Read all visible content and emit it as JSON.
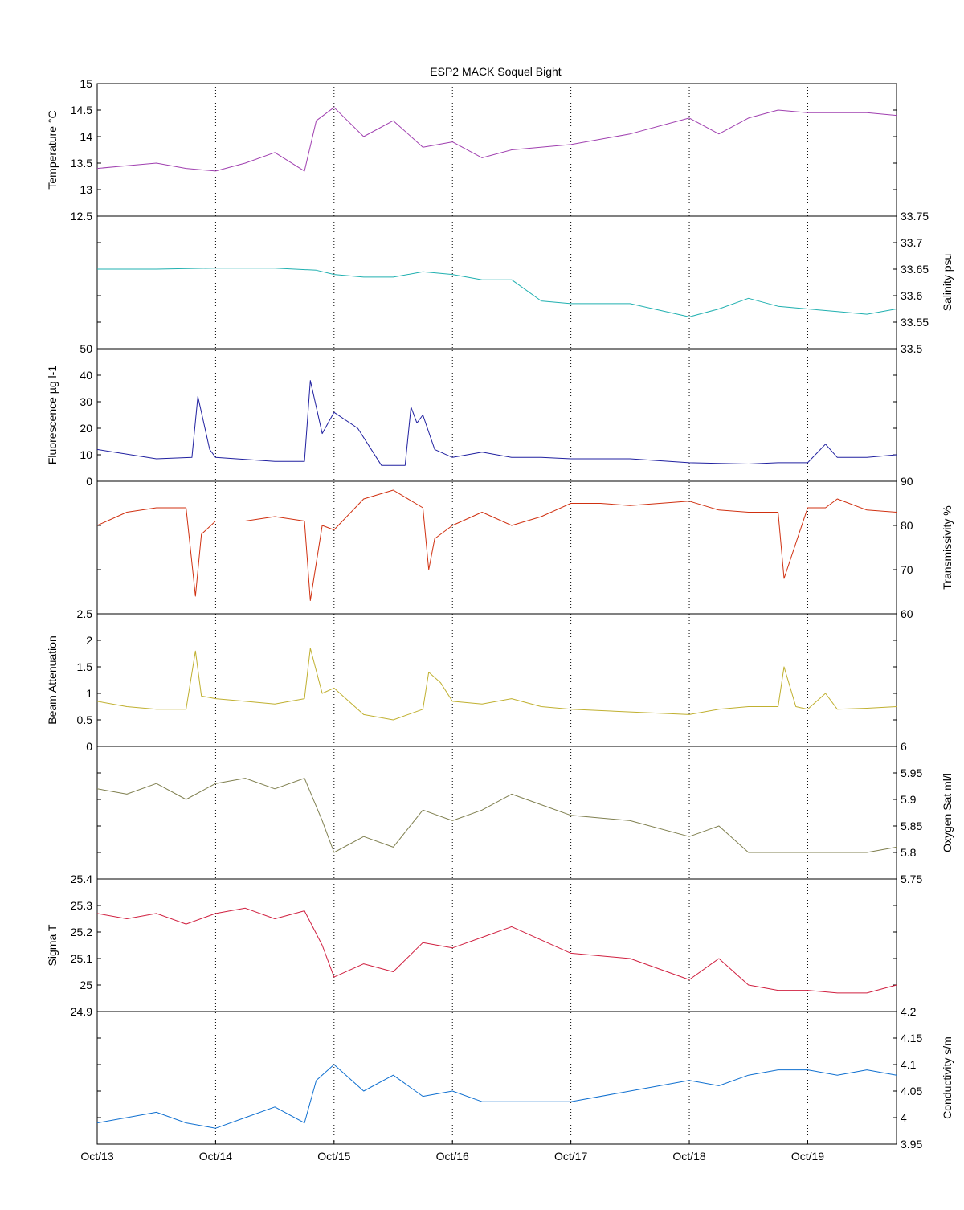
{
  "chart_data": {
    "type": "line",
    "title": "ESP2 MACK  Soquel Bight",
    "x_tick_labels": [
      "Oct/13",
      "Oct/14",
      "Oct/15",
      "Oct/16",
      "Oct/17",
      "Oct/18",
      "Oct/19"
    ],
    "xlim": [
      0,
      6.75
    ],
    "grid": "vertical dotted lines at each day",
    "panels": [
      {
        "name": "Temperature",
        "ylabel": "Temperature °C",
        "axis_side": "left",
        "ylim": [
          12.5,
          15
        ],
        "tick_labels": [
          "12.5",
          "13",
          "13.5",
          "14",
          "14.5",
          "15"
        ],
        "color": "#a040b0",
        "x": [
          0,
          0.25,
          0.5,
          0.75,
          1.0,
          1.25,
          1.5,
          1.75,
          1.85,
          2.0,
          2.25,
          2.5,
          2.75,
          3.0,
          3.25,
          3.5,
          4.0,
          4.5,
          5.0,
          5.25,
          5.5,
          5.75,
          6.0,
          6.25,
          6.5,
          6.75
        ],
        "y": [
          13.4,
          13.45,
          13.5,
          13.4,
          13.35,
          13.5,
          13.7,
          13.35,
          14.3,
          14.55,
          14.0,
          14.3,
          13.8,
          13.9,
          13.6,
          13.75,
          13.85,
          14.05,
          14.35,
          14.05,
          14.35,
          14.5,
          14.45,
          14.45,
          14.45,
          14.4
        ]
      },
      {
        "name": "Salinity",
        "ylabel": "Salinity psu",
        "axis_side": "right",
        "ylim": [
          33.5,
          33.75
        ],
        "tick_labels": [
          "33.5",
          "33.55",
          "33.6",
          "33.65",
          "33.7",
          "33.75"
        ],
        "color": "#20b0b0",
        "x": [
          0,
          0.5,
          1.0,
          1.5,
          1.85,
          2.0,
          2.25,
          2.5,
          2.75,
          3.0,
          3.25,
          3.5,
          3.75,
          4.0,
          4.5,
          5.0,
          5.25,
          5.5,
          5.75,
          6.0,
          6.25,
          6.5,
          6.75
        ],
        "y": [
          33.65,
          33.65,
          33.652,
          33.652,
          33.648,
          33.64,
          33.635,
          33.635,
          33.645,
          33.64,
          33.63,
          33.63,
          33.59,
          33.585,
          33.585,
          33.56,
          33.575,
          33.595,
          33.58,
          33.575,
          33.57,
          33.565,
          33.575
        ]
      },
      {
        "name": "Fluorescence",
        "ylabel": "Fluorescence µg l-1",
        "axis_side": "left",
        "ylim": [
          0,
          50
        ],
        "tick_labels": [
          "0",
          "10",
          "20",
          "30",
          "40",
          "50"
        ],
        "color": "#2020a0",
        "x": [
          0,
          0.5,
          0.8,
          0.85,
          0.95,
          1.0,
          1.5,
          1.75,
          1.8,
          1.9,
          2.0,
          2.2,
          2.4,
          2.6,
          2.65,
          2.7,
          2.75,
          2.85,
          3.0,
          3.25,
          3.5,
          3.75,
          4.0,
          4.5,
          5.0,
          5.5,
          5.75,
          5.9,
          6.0,
          6.15,
          6.25,
          6.5,
          6.75
        ],
        "y": [
          12,
          8.5,
          9,
          32,
          12,
          9,
          7.5,
          7.5,
          38,
          18,
          26,
          20,
          6,
          6,
          28,
          22,
          25,
          12,
          9,
          11,
          9,
          9,
          8.5,
          8.5,
          7,
          6.5,
          7,
          7,
          7,
          14,
          9,
          9,
          10
        ]
      },
      {
        "name": "Transmissivity",
        "ylabel": "Transmissivity %",
        "axis_side": "right",
        "ylim": [
          60,
          90
        ],
        "tick_labels": [
          "60",
          "70",
          "80",
          "90"
        ],
        "color": "#d03010",
        "x": [
          0,
          0.25,
          0.5,
          0.75,
          0.83,
          0.88,
          1.0,
          1.25,
          1.5,
          1.75,
          1.8,
          1.9,
          2.0,
          2.25,
          2.5,
          2.75,
          2.8,
          2.85,
          3.0,
          3.25,
          3.5,
          3.75,
          4.0,
          4.25,
          4.5,
          5.0,
          5.25,
          5.5,
          5.75,
          5.8,
          6.0,
          6.15,
          6.25,
          6.5,
          6.75
        ],
        "y": [
          80,
          83,
          84,
          84,
          64,
          78,
          81,
          81,
          82,
          81,
          63,
          80,
          79,
          86,
          88,
          84,
          70,
          77,
          80,
          83,
          80,
          82,
          85,
          85,
          84.5,
          85.5,
          83.5,
          83,
          83,
          68,
          84,
          84,
          86,
          83.5,
          83
        ]
      },
      {
        "name": "Beam Attenuation",
        "ylabel": "Beam Attenuation",
        "axis_side": "left",
        "ylim": [
          0,
          2.5
        ],
        "tick_labels": [
          "0",
          "0.5",
          "1",
          "1.5",
          "2",
          "2.5"
        ],
        "color": "#c0b030",
        "x": [
          0,
          0.25,
          0.5,
          0.75,
          0.83,
          0.88,
          1.0,
          1.25,
          1.5,
          1.75,
          1.8,
          1.9,
          2.0,
          2.25,
          2.5,
          2.75,
          2.8,
          2.9,
          3.0,
          3.25,
          3.5,
          3.75,
          4.0,
          4.5,
          5.0,
          5.25,
          5.5,
          5.75,
          5.8,
          5.9,
          6.0,
          6.15,
          6.25,
          6.5,
          6.75
        ],
        "y": [
          0.85,
          0.75,
          0.7,
          0.7,
          1.8,
          0.95,
          0.9,
          0.85,
          0.8,
          0.9,
          1.85,
          1.0,
          1.1,
          0.6,
          0.5,
          0.7,
          1.4,
          1.2,
          0.85,
          0.8,
          0.9,
          0.75,
          0.7,
          0.65,
          0.6,
          0.7,
          0.75,
          0.75,
          1.5,
          0.75,
          0.7,
          1.0,
          0.7,
          0.72,
          0.75
        ]
      },
      {
        "name": "Oxygen Sat",
        "ylabel": "Oxygen Sat ml/l",
        "axis_side": "right",
        "ylim": [
          5.75,
          6
        ],
        "tick_labels": [
          "5.75",
          "5.8",
          "5.85",
          "5.9",
          "5.95",
          "6"
        ],
        "color": "#808050",
        "x": [
          0,
          0.25,
          0.5,
          0.75,
          1.0,
          1.25,
          1.5,
          1.75,
          1.9,
          2.0,
          2.25,
          2.5,
          2.75,
          3.0,
          3.25,
          3.5,
          3.75,
          4.0,
          4.5,
          5.0,
          5.25,
          5.5,
          5.75,
          6.0,
          6.25,
          6.5,
          6.75
        ],
        "y": [
          5.92,
          5.91,
          5.93,
          5.9,
          5.93,
          5.94,
          5.92,
          5.94,
          5.86,
          5.8,
          5.83,
          5.81,
          5.88,
          5.86,
          5.88,
          5.91,
          5.89,
          5.87,
          5.86,
          5.83,
          5.85,
          5.8,
          5.8,
          5.8,
          5.8,
          5.8,
          5.81
        ]
      },
      {
        "name": "Sigma T",
        "ylabel": "Sigma T",
        "axis_side": "left",
        "ylim": [
          24.9,
          25.4
        ],
        "tick_labels": [
          "24.9",
          "25",
          "25.1",
          "25.2",
          "25.3",
          "25.4"
        ],
        "color": "#d02040",
        "x": [
          0,
          0.25,
          0.5,
          0.75,
          1.0,
          1.25,
          1.5,
          1.75,
          1.9,
          2.0,
          2.25,
          2.5,
          2.75,
          3.0,
          3.25,
          3.5,
          3.75,
          4.0,
          4.5,
          5.0,
          5.25,
          5.5,
          5.75,
          6.0,
          6.25,
          6.5,
          6.75
        ],
        "y": [
          25.27,
          25.25,
          25.27,
          25.23,
          25.27,
          25.29,
          25.25,
          25.28,
          25.15,
          25.03,
          25.08,
          25.05,
          25.16,
          25.14,
          25.18,
          25.22,
          25.17,
          25.12,
          25.1,
          25.02,
          25.1,
          25.0,
          24.98,
          24.98,
          24.97,
          24.97,
          25.0
        ]
      },
      {
        "name": "Conductivity",
        "ylabel": "Conductivity s/m",
        "axis_side": "right",
        "ylim": [
          3.95,
          4.2
        ],
        "tick_labels": [
          "3.95",
          "4",
          "4.05",
          "4.1",
          "4.15",
          "4.2"
        ],
        "color": "#1070d0",
        "x": [
          0,
          0.25,
          0.5,
          0.75,
          1.0,
          1.25,
          1.5,
          1.75,
          1.85,
          2.0,
          2.25,
          2.5,
          2.75,
          3.0,
          3.25,
          3.5,
          4.0,
          4.5,
          5.0,
          5.25,
          5.5,
          5.75,
          6.0,
          6.25,
          6.5,
          6.75
        ],
        "y": [
          3.99,
          4.0,
          4.01,
          3.99,
          3.98,
          4.0,
          4.02,
          3.99,
          4.07,
          4.1,
          4.05,
          4.08,
          4.04,
          4.05,
          4.03,
          4.03,
          4.03,
          4.05,
          4.07,
          4.06,
          4.08,
          4.09,
          4.09,
          4.08,
          4.09,
          4.08
        ]
      }
    ]
  }
}
